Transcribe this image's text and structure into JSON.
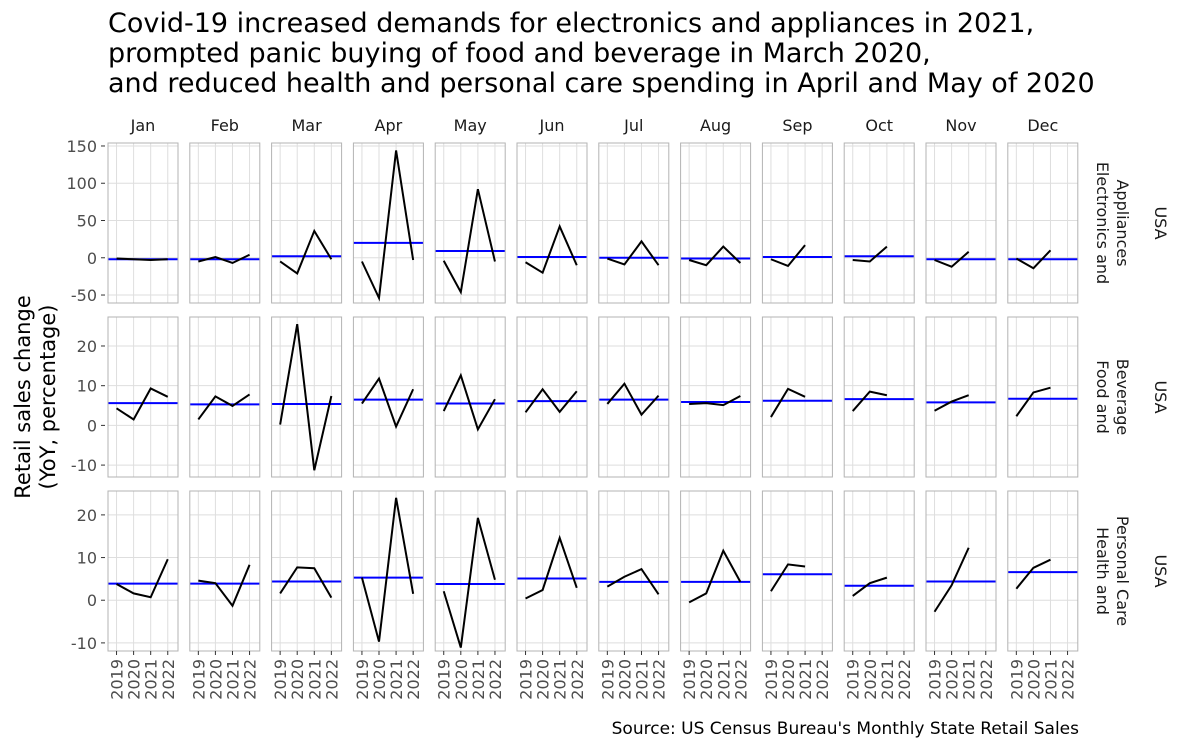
{
  "chart_data": {
    "type": "line",
    "title": [
      "Covid-19 increased demands for electronics and appliances in 2021,",
      "prompted panic buying of food and beverage in March 2020,",
      "and reduced health and personal care spending in April and May of 2020"
    ],
    "caption": "Source: US Census Bureau's Monthly State Retail Sales",
    "y_label": [
      "Retail sales change",
      "(YoY, percentage)"
    ],
    "x": [
      2019,
      2020,
      2021,
      2022
    ],
    "xticks": [
      2019,
      2020,
      2021,
      2022
    ],
    "xlim": [
      2018.5,
      2022.6
    ],
    "columns": [
      "Jan",
      "Feb",
      "Mar",
      "Apr",
      "May",
      "Jun",
      "Jul",
      "Aug",
      "Sep",
      "Oct",
      "Nov",
      "Dec"
    ],
    "line_color": "#000000",
    "mean_color": "#0000ff",
    "grid": true,
    "rows": [
      {
        "label": [
          "Electronics and",
          "Appliances"
        ],
        "region": "USA",
        "ylim": [
          -60.7,
          154
        ],
        "yticks": [
          -50,
          0,
          50,
          100,
          150
        ],
        "panels": [
          {
            "values": [
              -1,
              -2,
              -3,
              -2
            ],
            "mean": -2
          },
          {
            "values": [
              -5,
              1,
              -7,
              4
            ],
            "mean": -2
          },
          {
            "values": [
              -5,
              -21,
              36,
              -2
            ],
            "mean": 2
          },
          {
            "values": [
              -5,
              -54,
              144,
              -3
            ],
            "mean": 20
          },
          {
            "values": [
              -4,
              -46,
              92,
              -5
            ],
            "mean": 9
          },
          {
            "values": [
              -6,
              -20,
              42,
              -10
            ],
            "mean": 1
          },
          {
            "values": [
              -1,
              -9,
              22,
              -10
            ],
            "mean": 0
          },
          {
            "values": [
              -3,
              -10,
              15,
              -7
            ],
            "mean": -1
          },
          {
            "values": [
              -2,
              -11,
              17,
              null
            ],
            "mean": 1
          },
          {
            "values": [
              -3,
              -5,
              15,
              null
            ],
            "mean": 2
          },
          {
            "values": [
              -3,
              -12,
              8,
              null
            ],
            "mean": -2
          },
          {
            "values": [
              -1,
              -14,
              10,
              null
            ],
            "mean": -2
          }
        ]
      },
      {
        "label": [
          "Food and",
          "Beverage"
        ],
        "region": "USA",
        "ylim": [
          -13,
          27.3
        ],
        "yticks": [
          -10,
          0,
          10,
          20
        ],
        "panels": [
          {
            "values": [
              4.3,
              1.5,
              9.3,
              7.2
            ],
            "mean": 5.6
          },
          {
            "values": [
              1.5,
              7.3,
              4.9,
              7.8
            ],
            "mean": 5.3
          },
          {
            "values": [
              0.2,
              25.5,
              -11.3,
              7.4
            ],
            "mean": 5.4
          },
          {
            "values": [
              5.5,
              11.8,
              -0.3,
              9.1
            ],
            "mean": 6.5
          },
          {
            "values": [
              3.6,
              12.6,
              -1.0,
              6.6
            ],
            "mean": 5.5
          },
          {
            "values": [
              3.3,
              9.1,
              3.4,
              8.6
            ],
            "mean": 6.1
          },
          {
            "values": [
              5.4,
              10.5,
              2.7,
              7.5
            ],
            "mean": 6.5
          },
          {
            "values": [
              5.4,
              5.6,
              5.1,
              7.4
            ],
            "mean": 5.9
          },
          {
            "values": [
              2.1,
              9.2,
              7.2,
              null
            ],
            "mean": 6.2
          },
          {
            "values": [
              3.6,
              8.5,
              7.6,
              null
            ],
            "mean": 6.6
          },
          {
            "values": [
              3.7,
              6.0,
              7.6,
              null
            ],
            "mean": 5.8
          },
          {
            "values": [
              2.3,
              8.3,
              9.5,
              null
            ],
            "mean": 6.7
          }
        ]
      },
      {
        "label": [
          "Health and",
          "Personal Care"
        ],
        "region": "USA",
        "ylim": [
          -11.9,
          25.6
        ],
        "yticks": [
          -10,
          0,
          10,
          20
        ],
        "panels": [
          {
            "values": [
              3.8,
              1.6,
              0.7,
              9.6
            ],
            "mean": 3.9
          },
          {
            "values": [
              4.6,
              4.0,
              -1.3,
              8.3
            ],
            "mean": 3.9
          },
          {
            "values": [
              1.6,
              7.7,
              7.5,
              0.6
            ],
            "mean": 4.4
          },
          {
            "values": [
              5.3,
              -9.7,
              24.0,
              1.5
            ],
            "mean": 5.3
          },
          {
            "values": [
              2.1,
              -11.1,
              19.3,
              4.8
            ],
            "mean": 3.8
          },
          {
            "values": [
              0.4,
              2.4,
              14.6,
              2.9
            ],
            "mean": 5.1
          },
          {
            "values": [
              3.2,
              5.5,
              7.3,
              1.4
            ],
            "mean": 4.3
          },
          {
            "values": [
              -0.5,
              1.6,
              11.6,
              4.3
            ],
            "mean": 4.3
          },
          {
            "values": [
              2.1,
              8.4,
              7.9,
              null
            ],
            "mean": 6.1
          },
          {
            "values": [
              1.0,
              4.0,
              5.3,
              null
            ],
            "mean": 3.4
          },
          {
            "values": [
              -2.7,
              3.5,
              12.3,
              null
            ],
            "mean": 4.4
          },
          {
            "values": [
              2.7,
              7.6,
              9.5,
              null
            ],
            "mean": 6.6
          }
        ]
      }
    ]
  }
}
